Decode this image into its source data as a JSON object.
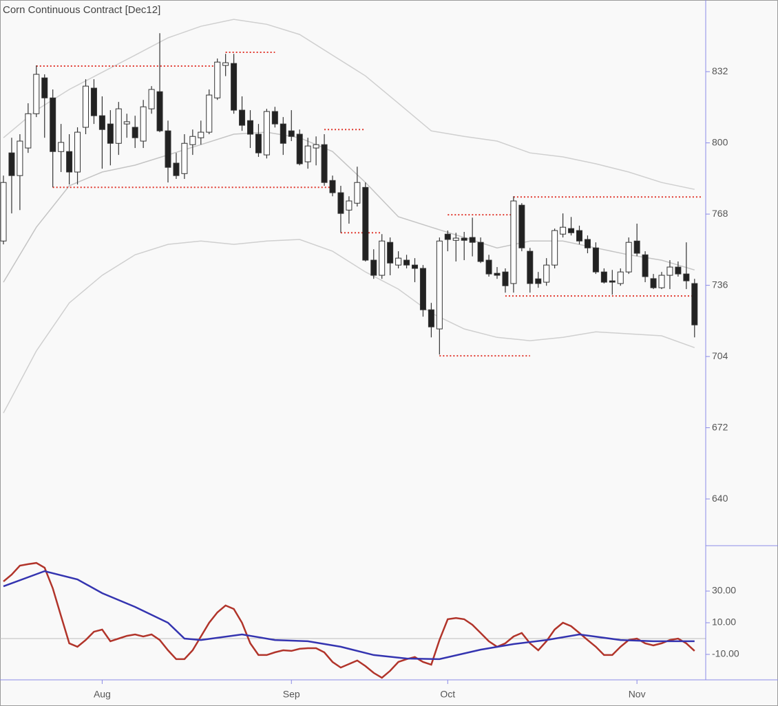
{
  "chart_data": [
    {
      "type": "candlestick",
      "title": "Corn Continuous Contract [Dec12]",
      "open": [
        755.9,
        795.5,
        785.3,
        797.7,
        813.1,
        829.2,
        820.2,
        796.1,
        796.1,
        786.9,
        807,
        824.6,
        812.2,
        808.5,
        799.8,
        808.5,
        807,
        800.8,
        815.3,
        823,
        805.4,
        790.9,
        786.2,
        799.2,
        802.3,
        804.8,
        820.2,
        834.8,
        835.7,
        814.7,
        810,
        803.9,
        794.6,
        814.1,
        808.5,
        805.4,
        803.9,
        791.5,
        797.7,
        799.2,
        783.1,
        777.6,
        769.8,
        772.9,
        780,
        747.3,
        740.5,
        755.3,
        745.1,
        747.3,
        745.1,
        743.6,
        725,
        716.4,
        759,
        756.2,
        757.2,
        757.5,
        755.3,
        747.3,
        741.4,
        742,
        736.8,
        772,
        751.3,
        738.9,
        737.4,
        745.1,
        759,
        761.5,
        760.6,
        756.6,
        752.8,
        742,
        738,
        736.8,
        742,
        755.9,
        749.7,
        739,
        734.9,
        740.5,
        744.2,
        741.1,
        736.8
      ],
      "high": [
        785.3,
        802.3,
        803.9,
        817.8,
        834.8,
        830.8,
        824,
        808.5,
        803.9,
        807,
        828.6,
        828.6,
        820.9,
        814.7,
        818.4,
        813.1,
        812.2,
        819.3,
        825.5,
        849.3,
        810,
        795.5,
        803.9,
        806,
        810,
        824,
        837.9,
        840,
        840,
        820.9,
        814.7,
        808.5,
        815.3,
        816.2,
        811.6,
        814.7,
        806,
        802.3,
        802.9,
        803.9,
        785.3,
        780.7,
        776,
        789.3,
        782.2,
        752.2,
        759,
        757.5,
        751.3,
        749.7,
        748.2,
        745.1,
        728.1,
        757.5,
        760.6,
        759.6,
        760,
        766.4,
        757.5,
        749.7,
        744.2,
        743.6,
        776,
        772.9,
        752.8,
        742,
        748.2,
        761.5,
        768.3,
        766.7,
        762.8,
        758.4,
        755.3,
        743.6,
        742.9,
        743.6,
        757.5,
        763.7,
        751.3,
        741.1,
        742,
        747.3,
        746.7,
        755.3,
        738.9
      ],
      "low": [
        754.4,
        768.3,
        769.8,
        795.5,
        811.6,
        802.3,
        780,
        786.9,
        781.3,
        781.3,
        803.9,
        808.5,
        788.4,
        789.9,
        794.6,
        802.3,
        797.7,
        797.7,
        813.1,
        804.8,
        782.2,
        783.8,
        783.8,
        794.6,
        799.2,
        803.9,
        819.3,
        830,
        813.1,
        805.4,
        797.7,
        793.7,
        793,
        806.9,
        794.6,
        800.8,
        789.9,
        788.4,
        789.9,
        780.7,
        776,
        759.6,
        763.7,
        771.4,
        746.7,
        738.9,
        738.9,
        740.5,
        743.6,
        743.6,
        737.4,
        721.9,
        712.6,
        704.9,
        751.3,
        746.7,
        747.3,
        749,
        746,
        739.9,
        738.9,
        732.7,
        732.7,
        751.3,
        732.7,
        734.9,
        735.8,
        743.6,
        757.5,
        758.4,
        754.4,
        750.4,
        741.1,
        736.8,
        731.8,
        735.8,
        741.1,
        749.1,
        737.4,
        734.3,
        734.3,
        734.3,
        739.9,
        734.3,
        712.6
      ],
      "close": [
        782.2,
        785.3,
        800.8,
        813.1,
        830.8,
        820.2,
        796.1,
        800.2,
        786.9,
        804.8,
        825.5,
        812.2,
        806,
        799.8,
        815.3,
        809.5,
        802.3,
        816.2,
        824,
        805.4,
        789,
        785.3,
        799.8,
        802.9,
        804.8,
        821.5,
        836.3,
        836,
        814.7,
        807.9,
        803.9,
        795.5,
        814.1,
        808.5,
        799.8,
        802.9,
        790.6,
        798.6,
        799.2,
        782.2,
        777.6,
        768.3,
        773.9,
        782.2,
        747.3,
        740.5,
        755.9,
        746,
        748.2,
        745.1,
        743.6,
        725,
        717.3,
        755.9,
        756.6,
        757.2,
        756.2,
        755.3,
        746.7,
        741.1,
        740.5,
        735.8,
        773.9,
        752.8,
        736.8,
        736.8,
        745.1,
        760.6,
        762.1,
        759.6,
        755.9,
        752.8,
        742,
        737.4,
        737.4,
        742,
        755.3,
        750.4,
        739.9,
        734.9,
        740.5,
        744.2,
        741.1,
        738,
        718.2
      ],
      "up_color": "#ffffff",
      "down_color": "#222222",
      "bands": [
        {
          "color": "#cfcfcf",
          "x": [
            0,
            4,
            8,
            12,
            16,
            20,
            24,
            28,
            32,
            36,
            40,
            44,
            48,
            52,
            56,
            60,
            64,
            68,
            72,
            76,
            80,
            84
          ],
          "values": [
            802.3,
            814.7,
            824,
            831.7,
            839.4,
            847.2,
            852.4,
            855.5,
            853.3,
            848.7,
            839.4,
            830.1,
            817.8,
            805.4,
            802.9,
            800.8,
            795.5,
            793.7,
            790.6,
            786.9,
            782.2,
            779.1
          ]
        },
        {
          "color": "#c4c4c4",
          "x": [
            0,
            4,
            8,
            12,
            16,
            20,
            24,
            28,
            32,
            36,
            40,
            44,
            48,
            52,
            56,
            60,
            64,
            68,
            72,
            76,
            80,
            84
          ],
          "values": [
            737.4,
            762.1,
            780.7,
            786.9,
            790,
            794.6,
            799.2,
            803.9,
            804.8,
            802.3,
            796.1,
            782.2,
            766.8,
            762.1,
            757.5,
            752.8,
            755.9,
            755.9,
            752.8,
            749.7,
            747.3,
            742.9
          ]
        },
        {
          "color": "#cfcfcf",
          "x": [
            0,
            4,
            8,
            12,
            16,
            20,
            24,
            28,
            32,
            36,
            40,
            44,
            48,
            52,
            56,
            60,
            64,
            68,
            72,
            76,
            80,
            84
          ],
          "values": [
            678.6,
            706.5,
            728.1,
            740.5,
            749.7,
            754.4,
            755.9,
            754.4,
            755.9,
            756.6,
            751.3,
            742,
            734.3,
            723.5,
            716.4,
            712.6,
            711.1,
            712.6,
            715.1,
            714.2,
            713.3,
            708
          ]
        }
      ],
      "levels": {
        "color": "#e0352b",
        "items": [
          {
            "from": 4,
            "to": 26,
            "value": 834.5
          },
          {
            "from": 27,
            "to": 33,
            "value": 840.7
          },
          {
            "from": 6,
            "to": 40,
            "value": 780
          },
          {
            "from": 39,
            "to": 44,
            "value": 806
          },
          {
            "from": 41,
            "to": 46,
            "value": 759.6
          },
          {
            "from": 54,
            "to": 62,
            "value": 767.7
          },
          {
            "from": 62,
            "to": 85,
            "value": 775.7
          },
          {
            "from": 61,
            "to": 84,
            "value": 731.2
          },
          {
            "from": 53,
            "to": 64,
            "value": 704.3
          }
        ]
      },
      "ylim": [
        619,
        864.2
      ],
      "yticks": [
        640,
        672,
        704,
        736,
        768,
        800,
        832
      ]
    },
    {
      "type": "line",
      "categories": [
        null,
        null,
        null,
        null,
        null,
        null,
        null,
        null,
        null,
        null,
        null,
        null,
        "Aug",
        null,
        null,
        null,
        null,
        null,
        null,
        null,
        null,
        null,
        null,
        null,
        null,
        null,
        null,
        null,
        null,
        null,
        null,
        null,
        null,
        null,
        null,
        "Sep",
        null,
        null,
        null,
        null,
        null,
        null,
        null,
        null,
        null,
        null,
        null,
        null,
        null,
        null,
        null,
        null,
        null,
        null,
        "Oct",
        null,
        null,
        null,
        null,
        null,
        null,
        null,
        null,
        null,
        null,
        null,
        null,
        null,
        null,
        null,
        null,
        null,
        null,
        null,
        null,
        null,
        null,
        "Nov",
        null,
        null,
        null,
        null,
        null,
        null,
        null
      ],
      "series": [
        {
          "color": "#b1342a",
          "values": [
            36.1,
            40.4,
            46.1,
            47.0,
            47.8,
            44.8,
            31.7,
            14.3,
            -3.0,
            -5.2,
            -0.9,
            4.3,
            5.7,
            -1.7,
            0.0,
            1.7,
            2.6,
            1.3,
            2.6,
            -0.9,
            -7.4,
            -13.0,
            -13.0,
            -7.4,
            1.3,
            10.0,
            16.5,
            20.9,
            18.7,
            10.0,
            -3.0,
            -10.4,
            -10.4,
            -8.7,
            -7.4,
            -7.8,
            -6.5,
            -6.1,
            -6.1,
            -8.7,
            -14.8,
            -18.3,
            -16.1,
            -13.9,
            -17.4,
            -21.7,
            -24.8,
            -20.4,
            -14.8,
            -13.0,
            -11.7,
            -14.8,
            -16.5,
            -0.9,
            12.2,
            13.0,
            12.2,
            8.7,
            3.5,
            -1.7,
            -5.2,
            -3.0,
            1.3,
            3.5,
            -3.0,
            -7.4,
            -1.7,
            5.7,
            10.0,
            7.8,
            3.5,
            -0.9,
            -5.2,
            -10.4,
            -10.4,
            -5.2,
            -0.9,
            0.0,
            -3.0,
            -4.3,
            -3.0,
            -0.9,
            0.0,
            -3.0,
            -7.8
          ]
        },
        {
          "color": "#3434b0",
          "x": [
            0,
            5,
            9,
            12,
            16,
            20,
            22,
            24,
            29,
            33,
            37,
            41,
            45,
            49,
            53,
            58,
            62,
            66,
            70,
            75,
            79,
            84
          ],
          "values": [
            33.0,
            42.6,
            37.4,
            28.7,
            20.0,
            10.0,
            0.0,
            -0.9,
            2.6,
            -0.9,
            -1.7,
            -5.2,
            -10.4,
            -12.6,
            -13.0,
            -7.0,
            -3.5,
            -0.9,
            2.6,
            -0.9,
            -1.7,
            -1.7
          ]
        }
      ],
      "hline": 0,
      "ylim": [
        -26.1,
        58.7
      ],
      "yticks": [
        {
          "value": 30,
          "label": "30.00"
        },
        {
          "value": 10,
          "label": "10.00"
        },
        {
          "value": -10,
          "label": "-10.00"
        }
      ]
    }
  ]
}
